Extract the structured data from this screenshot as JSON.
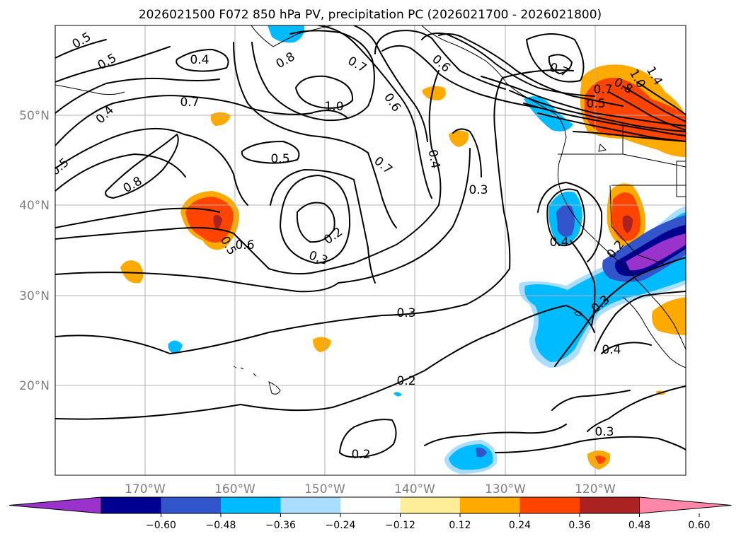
{
  "title": "2026021500 F072 850 hPa PV, precipitation PC (2026021700 - 2026021800)",
  "map": {
    "lon_range": [
      -180,
      -110
    ],
    "lat_range": [
      10,
      60
    ],
    "lon_ticks": [
      "170°W",
      "160°W",
      "150°W",
      "140°W",
      "130°W",
      "120°W"
    ],
    "lat_ticks": [
      "50°N",
      "40°N",
      "30°N",
      "20°N"
    ],
    "gridlines": true
  },
  "colorbar": {
    "ticks": [
      "−0.60",
      "−0.48",
      "−0.36",
      "−0.24",
      "−0.12",
      "0.12",
      "0.24",
      "0.36",
      "0.48",
      "0.60"
    ],
    "colors": [
      "#9933cc",
      "#000090",
      "#3355cc",
      "#00bbff",
      "#aaddff",
      "#ffffff",
      "#ffee99",
      "#ffaa00",
      "#ff4400",
      "#aa2222",
      "#ff88aa"
    ],
    "extend": "both"
  },
  "contour_labels": [
    "0.5",
    "0.5",
    "0.4",
    "0.4",
    "0.8",
    "0.7",
    "0.7",
    "1.0",
    "0.6",
    "0.6",
    "0.7",
    "0.7",
    "0.5",
    "0.8",
    "0.5",
    "0.4",
    "0.3",
    "0.3",
    "0.2",
    "0.6",
    "0.5",
    "0.3",
    "0.2",
    "0.2",
    "0.4",
    "0.3",
    "0.4",
    "0.3",
    "0.7",
    "0.8",
    "1.0",
    "1.4",
    "0.5",
    "0.2"
  ]
}
